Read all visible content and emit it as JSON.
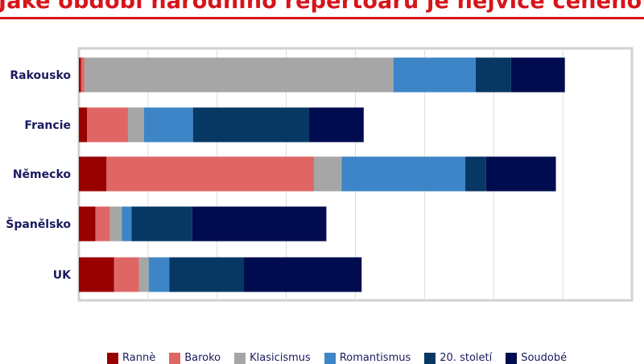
{
  "title": "Jaké období národního repertoáru je nejvíce ceněno?",
  "chart_data": {
    "type": "bar",
    "orientation": "horizontal",
    "stacked": true,
    "title": "Jaké období národního repertoáru je nejvíce ceněno?",
    "categories": [
      "Rakousko",
      "Francie",
      "Německo",
      "Španělsko",
      "UK"
    ],
    "series": [
      {
        "name": "Rannè",
        "color": "#990000",
        "values": [
          0.03,
          0.12,
          0.4,
          0.24,
          0.51
        ]
      },
      {
        "name": "Baroko",
        "color": "#e06666",
        "values": [
          0.05,
          0.59,
          3.0,
          0.21,
          0.36
        ]
      },
      {
        "name": "Klasicismus",
        "color": "#a6a6a6",
        "values": [
          4.47,
          0.23,
          0.4,
          0.17,
          0.14
        ]
      },
      {
        "name": "Romantismus",
        "color": "#3d85c6",
        "values": [
          1.19,
          0.71,
          1.79,
          0.14,
          0.3
        ]
      },
      {
        "name": "20. století",
        "color": "#073763",
        "values": [
          0.51,
          1.68,
          0.3,
          0.88,
          1.07
        ]
      },
      {
        "name": "Soudobé",
        "color": "#000c4f",
        "values": [
          0.78,
          0.79,
          1.01,
          1.94,
          1.71
        ]
      }
    ],
    "xlim": [
      0,
      8
    ],
    "tick_labels_shown": false,
    "grid": true,
    "legend": "bottom"
  }
}
